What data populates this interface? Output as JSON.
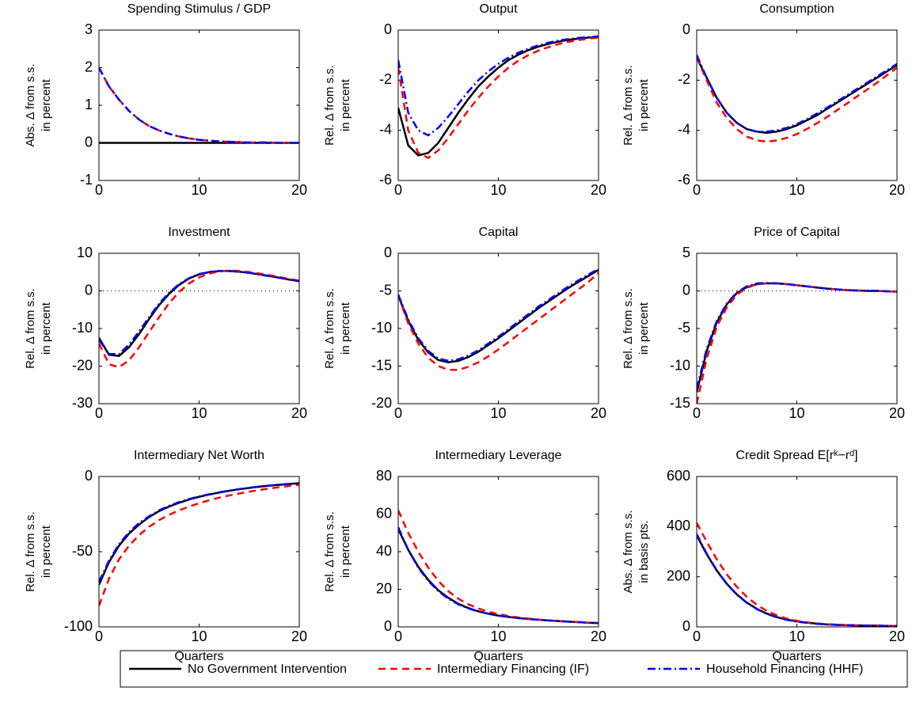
{
  "chart_data": [
    {
      "type": "line",
      "title": "Spending Stimulus / GDP",
      "ylabel": [
        "Abs. Δ from s.s.",
        "in percent"
      ],
      "x": [
        0,
        1,
        2,
        3,
        4,
        5,
        6,
        7,
        8,
        9,
        10,
        11,
        12,
        13,
        14,
        15,
        16,
        17,
        18,
        19,
        20
      ],
      "xlim": [
        0,
        20
      ],
      "xticks": [
        0,
        10,
        20
      ],
      "ylim": [
        -1,
        3
      ],
      "yticks": [
        -1,
        0,
        1,
        2,
        3
      ],
      "zero_line": false,
      "series": [
        {
          "color": "#000000",
          "style": "solid",
          "values": [
            0,
            0,
            0,
            0,
            0,
            0,
            0,
            0,
            0,
            0,
            0,
            0,
            0,
            0,
            0,
            0,
            0,
            0,
            0,
            0,
            0
          ]
        },
        {
          "color": "#ff0000",
          "style": "dashed",
          "values": [
            2,
            1.5,
            1.15,
            0.85,
            0.62,
            0.45,
            0.33,
            0.24,
            0.17,
            0.12,
            0.08,
            0.06,
            0.04,
            0.03,
            0.02,
            0.01,
            0.01,
            0.01,
            0,
            0,
            0
          ]
        },
        {
          "color": "#0000ff",
          "style": "dashdot",
          "values": [
            2,
            1.5,
            1.15,
            0.85,
            0.62,
            0.45,
            0.33,
            0.24,
            0.17,
            0.12,
            0.08,
            0.06,
            0.04,
            0.03,
            0.02,
            0.01,
            0.01,
            0.01,
            0,
            0,
            0
          ]
        }
      ]
    },
    {
      "type": "line",
      "title": "Output",
      "ylabel": [
        "Rel. Δ from s.s.",
        "in percent"
      ],
      "x": [
        0,
        1,
        2,
        3,
        4,
        5,
        6,
        7,
        8,
        9,
        10,
        11,
        12,
        13,
        14,
        15,
        16,
        17,
        18,
        19,
        20
      ],
      "xlim": [
        0,
        20
      ],
      "xticks": [
        0,
        10,
        20
      ],
      "ylim": [
        -6,
        0
      ],
      "yticks": [
        -6,
        -4,
        -2,
        0
      ],
      "zero_line": true,
      "series": [
        {
          "color": "#000000",
          "style": "solid",
          "values": [
            -3.1,
            -4.6,
            -5.0,
            -4.9,
            -4.5,
            -3.9,
            -3.3,
            -2.75,
            -2.25,
            -1.85,
            -1.5,
            -1.2,
            -0.98,
            -0.8,
            -0.66,
            -0.55,
            -0.46,
            -0.39,
            -0.34,
            -0.3,
            -0.27
          ]
        },
        {
          "color": "#ff0000",
          "style": "dashed",
          "values": [
            -1.5,
            -4.0,
            -4.9,
            -5.1,
            -4.8,
            -4.3,
            -3.75,
            -3.2,
            -2.7,
            -2.25,
            -1.85,
            -1.5,
            -1.22,
            -1.0,
            -0.82,
            -0.68,
            -0.56,
            -0.47,
            -0.4,
            -0.34,
            -0.3
          ]
        },
        {
          "color": "#0000ff",
          "style": "dashdot",
          "values": [
            -1.2,
            -3.3,
            -4.0,
            -4.2,
            -3.9,
            -3.45,
            -2.95,
            -2.45,
            -2.0,
            -1.65,
            -1.35,
            -1.1,
            -0.9,
            -0.74,
            -0.61,
            -0.5,
            -0.42,
            -0.36,
            -0.31,
            -0.28,
            -0.25
          ]
        }
      ]
    },
    {
      "type": "line",
      "title": "Consumption",
      "ylabel": [
        "Rel. Δ from s.s.",
        "in percent"
      ],
      "x": [
        0,
        1,
        2,
        3,
        4,
        5,
        6,
        7,
        8,
        9,
        10,
        11,
        12,
        13,
        14,
        15,
        16,
        17,
        18,
        19,
        20
      ],
      "xlim": [
        0,
        20
      ],
      "xticks": [
        0,
        10,
        20
      ],
      "ylim": [
        -6,
        0
      ],
      "yticks": [
        -6,
        -4,
        -2,
        0
      ],
      "zero_line": true,
      "series": [
        {
          "color": "#000000",
          "style": "solid",
          "values": [
            -1.1,
            -1.9,
            -2.7,
            -3.3,
            -3.7,
            -3.95,
            -4.05,
            -4.1,
            -4.05,
            -3.95,
            -3.8,
            -3.6,
            -3.4,
            -3.15,
            -2.9,
            -2.65,
            -2.4,
            -2.15,
            -1.9,
            -1.65,
            -1.4
          ]
        },
        {
          "color": "#ff0000",
          "style": "dashed",
          "values": [
            -1.1,
            -2.0,
            -2.9,
            -3.5,
            -3.95,
            -4.25,
            -4.4,
            -4.45,
            -4.4,
            -4.3,
            -4.15,
            -3.95,
            -3.72,
            -3.47,
            -3.2,
            -2.93,
            -2.65,
            -2.38,
            -2.1,
            -1.8,
            -1.5
          ]
        },
        {
          "color": "#0000ff",
          "style": "dashdot",
          "values": [
            -1.0,
            -1.9,
            -2.7,
            -3.3,
            -3.7,
            -3.95,
            -4.05,
            -4.05,
            -4.0,
            -3.9,
            -3.75,
            -3.55,
            -3.33,
            -3.1,
            -2.85,
            -2.6,
            -2.35,
            -2.1,
            -1.85,
            -1.6,
            -1.35
          ]
        }
      ]
    },
    {
      "type": "line",
      "title": "Investment",
      "ylabel": [
        "Rel. Δ from s.s.",
        "in percent"
      ],
      "x": [
        0,
        1,
        2,
        3,
        4,
        5,
        6,
        7,
        8,
        9,
        10,
        11,
        12,
        13,
        14,
        15,
        16,
        17,
        18,
        19,
        20
      ],
      "xlim": [
        0,
        20
      ],
      "xticks": [
        0,
        10,
        20
      ],
      "ylim": [
        -30,
        10
      ],
      "yticks": [
        -30,
        -20,
        -10,
        0,
        10
      ],
      "zero_line": true,
      "series": [
        {
          "color": "#000000",
          "style": "solid",
          "values": [
            -12.5,
            -17,
            -17.3,
            -15,
            -11.5,
            -7.5,
            -3.8,
            -0.8,
            1.6,
            3.3,
            4.4,
            5.0,
            5.3,
            5.3,
            5.1,
            4.8,
            4.4,
            4.0,
            3.5,
            3.0,
            2.6
          ]
        },
        {
          "color": "#ff0000",
          "style": "dashed",
          "values": [
            -14,
            -19.5,
            -20.3,
            -18.5,
            -15,
            -11,
            -7,
            -3.3,
            -0.3,
            2.0,
            3.6,
            4.6,
            5.2,
            5.4,
            5.3,
            5.0,
            4.6,
            4.2,
            3.7,
            3.2,
            2.7
          ]
        },
        {
          "color": "#0000ff",
          "style": "dashdot",
          "values": [
            -13,
            -16.8,
            -16.8,
            -14.3,
            -10.8,
            -7,
            -3.4,
            -0.5,
            1.8,
            3.4,
            4.5,
            5.0,
            5.3,
            5.3,
            5.1,
            4.8,
            4.4,
            3.9,
            3.5,
            3.0,
            2.6
          ]
        }
      ]
    },
    {
      "type": "line",
      "title": "Capital",
      "ylabel": [
        "Rel. Δ from s.s.",
        "in percent"
      ],
      "x": [
        0,
        1,
        2,
        3,
        4,
        5,
        6,
        7,
        8,
        9,
        10,
        11,
        12,
        13,
        14,
        15,
        16,
        17,
        18,
        19,
        20
      ],
      "xlim": [
        0,
        20
      ],
      "xticks": [
        0,
        10,
        20
      ],
      "ylim": [
        -20,
        0
      ],
      "yticks": [
        -20,
        -15,
        -10,
        -5,
        0
      ],
      "zero_line": true,
      "series": [
        {
          "color": "#000000",
          "style": "solid",
          "values": [
            -5.6,
            -9,
            -11.5,
            -13.2,
            -14.2,
            -14.5,
            -14.3,
            -13.8,
            -13.1,
            -12.2,
            -11.3,
            -10.3,
            -9.3,
            -8.3,
            -7.3,
            -6.4,
            -5.5,
            -4.6,
            -3.8,
            -3.0,
            -2.2
          ]
        },
        {
          "color": "#ff0000",
          "style": "dashed",
          "values": [
            -5.6,
            -9.3,
            -12,
            -13.9,
            -15.0,
            -15.5,
            -15.5,
            -15.1,
            -14.5,
            -13.7,
            -12.8,
            -11.8,
            -10.8,
            -9.8,
            -8.8,
            -7.8,
            -6.8,
            -5.8,
            -4.8,
            -3.8,
            -2.6
          ]
        },
        {
          "color": "#0000ff",
          "style": "dashdot",
          "values": [
            -5.5,
            -8.8,
            -11.3,
            -13.0,
            -14.0,
            -14.3,
            -14.1,
            -13.6,
            -12.9,
            -12.0,
            -11.1,
            -10.1,
            -9.1,
            -8.1,
            -7.1,
            -6.2,
            -5.3,
            -4.4,
            -3.6,
            -2.8,
            -2.1
          ]
        }
      ]
    },
    {
      "type": "line",
      "title": "Price of Capital",
      "ylabel": [
        "Rel. Δ from s.s.",
        "in percent"
      ],
      "x": [
        0,
        1,
        2,
        3,
        4,
        5,
        6,
        7,
        8,
        9,
        10,
        11,
        12,
        13,
        14,
        15,
        16,
        17,
        18,
        19,
        20
      ],
      "xlim": [
        0,
        20
      ],
      "xticks": [
        0,
        10,
        20
      ],
      "ylim": [
        -15,
        5
      ],
      "yticks": [
        -15,
        -10,
        -5,
        0,
        5
      ],
      "zero_line": true,
      "series": [
        {
          "color": "#000000",
          "style": "solid",
          "values": [
            -13.5,
            -8,
            -4.2,
            -1.8,
            -0.3,
            0.5,
            0.9,
            1.0,
            1.0,
            0.9,
            0.75,
            0.6,
            0.45,
            0.3,
            0.2,
            0.1,
            0.05,
            0,
            0,
            -0.05,
            -0.1
          ]
        },
        {
          "color": "#ff0000",
          "style": "dashed",
          "values": [
            -15,
            -9,
            -4.8,
            -2.2,
            -0.5,
            0.4,
            0.9,
            1.0,
            1.0,
            0.9,
            0.75,
            0.6,
            0.45,
            0.3,
            0.2,
            0.1,
            0.05,
            0,
            0,
            -0.05,
            -0.1
          ]
        },
        {
          "color": "#0000ff",
          "style": "dashdot",
          "values": [
            -13,
            -7.7,
            -4,
            -1.7,
            -0.2,
            0.6,
            1.0,
            1.05,
            1.0,
            0.9,
            0.75,
            0.6,
            0.45,
            0.3,
            0.2,
            0.1,
            0.05,
            0,
            0,
            -0.05,
            -0.1
          ]
        }
      ]
    },
    {
      "type": "line",
      "title": "Intermediary Net Worth",
      "ylabel": [
        "Rel. Δ from s.s.",
        "in percent"
      ],
      "xlabel": "Quarters",
      "x": [
        0,
        1,
        2,
        3,
        4,
        5,
        6,
        7,
        8,
        9,
        10,
        11,
        12,
        13,
        14,
        15,
        16,
        17,
        18,
        19,
        20
      ],
      "xlim": [
        0,
        20
      ],
      "xticks": [
        0,
        10,
        20
      ],
      "ylim": [
        -100,
        0
      ],
      "yticks": [
        -100,
        -50,
        0
      ],
      "zero_line": true,
      "series": [
        {
          "color": "#000000",
          "style": "solid",
          "values": [
            -72,
            -57,
            -46,
            -38,
            -32,
            -27,
            -23,
            -20,
            -17.5,
            -15.3,
            -13.5,
            -12,
            -10.7,
            -9.5,
            -8.5,
            -7.6,
            -6.8,
            -6.1,
            -5.5,
            -5,
            -4.5
          ]
        },
        {
          "color": "#ff0000",
          "style": "dashed",
          "values": [
            -86,
            -68,
            -55,
            -46,
            -39,
            -33.5,
            -29,
            -25.5,
            -22.5,
            -20,
            -17.8,
            -15.8,
            -14.1,
            -12.6,
            -11.3,
            -10.1,
            -9,
            -8,
            -7.1,
            -6.3,
            -5.5
          ]
        },
        {
          "color": "#0000ff",
          "style": "dashdot",
          "values": [
            -70,
            -56,
            -45,
            -37,
            -31,
            -26.5,
            -22.5,
            -19.5,
            -17,
            -15,
            -13.3,
            -11.8,
            -10.5,
            -9.4,
            -8.4,
            -7.5,
            -6.7,
            -6,
            -5.4,
            -4.9,
            -4.4
          ]
        }
      ]
    },
    {
      "type": "line",
      "title": "Intermediary Leverage",
      "ylabel": [
        "Rel. Δ from s.s.",
        "in percent"
      ],
      "xlabel": "Quarters",
      "x": [
        0,
        1,
        2,
        3,
        4,
        5,
        6,
        7,
        8,
        9,
        10,
        11,
        12,
        13,
        14,
        15,
        16,
        17,
        18,
        19,
        20
      ],
      "xlim": [
        0,
        20
      ],
      "xticks": [
        0,
        10,
        20
      ],
      "ylim": [
        0,
        80
      ],
      "yticks": [
        0,
        20,
        40,
        60,
        80
      ],
      "zero_line": false,
      "series": [
        {
          "color": "#000000",
          "style": "solid",
          "values": [
            52,
            41,
            32,
            25,
            19.5,
            15.5,
            12.3,
            10,
            8.3,
            7,
            6,
            5.3,
            4.7,
            4.2,
            3.8,
            3.4,
            3.1,
            2.8,
            2.5,
            2.2,
            2
          ]
        },
        {
          "color": "#ff0000",
          "style": "dashed",
          "values": [
            62,
            50,
            40,
            31.5,
            24.5,
            19,
            15,
            12,
            9.8,
            8.1,
            6.8,
            5.8,
            5.0,
            4.4,
            3.9,
            3.5,
            3.1,
            2.8,
            2.5,
            2.2,
            2.0
          ]
        },
        {
          "color": "#0000ff",
          "style": "dashdot",
          "values": [
            53,
            41,
            31.5,
            24.5,
            19,
            15,
            12,
            9.8,
            8.2,
            7,
            6,
            5.3,
            4.7,
            4.2,
            3.8,
            3.4,
            3.1,
            2.8,
            2.5,
            2.2,
            2
          ]
        }
      ]
    },
    {
      "type": "line",
      "title": "Credit Spread E[rᵏ−rᵈ]",
      "ylabel": [
        "Abs. Δ from s.s.",
        "in basis pts."
      ],
      "xlabel": "Quarters",
      "x": [
        0,
        1,
        2,
        3,
        4,
        5,
        6,
        7,
        8,
        9,
        10,
        11,
        12,
        13,
        14,
        15,
        16,
        17,
        18,
        19,
        20
      ],
      "xlim": [
        0,
        20
      ],
      "xticks": [
        0,
        10,
        20
      ],
      "ylim": [
        0,
        600
      ],
      "yticks": [
        0,
        200,
        400,
        600
      ],
      "zero_line": false,
      "series": [
        {
          "color": "#000000",
          "style": "solid",
          "values": [
            365,
            290,
            225,
            172,
            130,
            97,
            72,
            53,
            39,
            29,
            22,
            17,
            13,
            10,
            8,
            7,
            6,
            5,
            5,
            4,
            4
          ]
        },
        {
          "color": "#ff0000",
          "style": "dashed",
          "values": [
            415,
            340,
            270,
            210,
            160,
            120,
            88,
            64,
            46,
            33,
            24,
            18,
            14,
            11,
            9,
            7,
            6,
            5,
            5,
            4,
            4
          ]
        },
        {
          "color": "#0000ff",
          "style": "dashdot",
          "values": [
            370,
            292,
            226,
            172,
            129,
            96,
            71,
            52,
            38,
            28,
            21,
            16,
            12,
            10,
            8,
            7,
            6,
            5,
            5,
            4,
            4
          ]
        }
      ]
    }
  ],
  "legend": [
    "No Government Intervention",
    "Intermediary Financing (IF)",
    "Household Financing (HHF)"
  ]
}
